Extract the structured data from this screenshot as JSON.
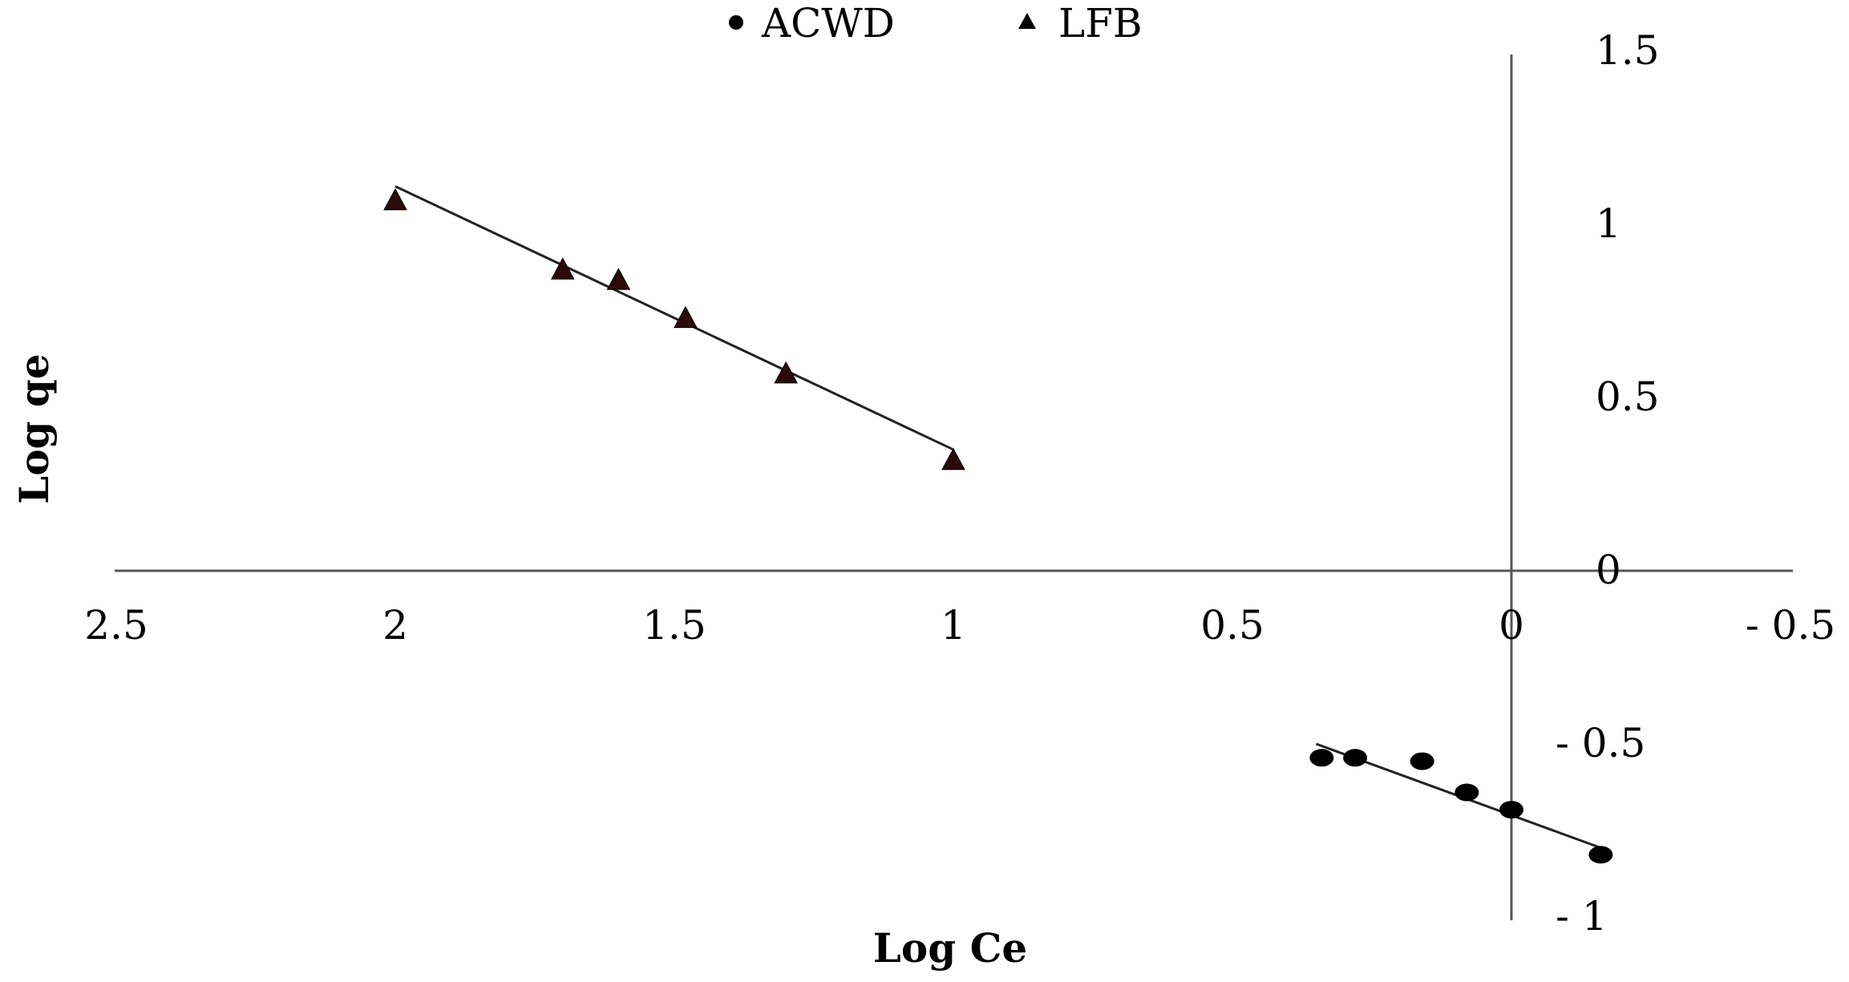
{
  "chart_data": {
    "type": "scatter",
    "xlabel": "Log Ce",
    "ylabel": "Log qe",
    "x_reversed": true,
    "xlim": [
      -0.5,
      2.5
    ],
    "ylim": [
      -1,
      1.5
    ],
    "x_ticks": [
      {
        "value": 2.5,
        "label": "2.5"
      },
      {
        "value": 2,
        "label": "2"
      },
      {
        "value": 1.5,
        "label": "1.5"
      },
      {
        "value": 1,
        "label": "1"
      },
      {
        "value": 0.5,
        "label": "0.5"
      },
      {
        "value": 0,
        "label": "0"
      },
      {
        "value": -0.5,
        "label": "- 0.5"
      }
    ],
    "y_ticks": [
      {
        "value": 1.5,
        "label": "1.5"
      },
      {
        "value": 1,
        "label": "1"
      },
      {
        "value": 0.5,
        "label": "0.5"
      },
      {
        "value": 0,
        "label": "0"
      },
      {
        "value": -0.5,
        "label": "- 0.5"
      },
      {
        "value": -1,
        "label": "- 1"
      }
    ],
    "grid": false,
    "legend_position": "top",
    "series": [
      {
        "name": "ACWD",
        "marker": "circle",
        "color": "#000000",
        "points": [
          {
            "x": 0.34,
            "y": -0.54
          },
          {
            "x": 0.28,
            "y": -0.54
          },
          {
            "x": 0.16,
            "y": -0.55
          },
          {
            "x": 0.08,
            "y": -0.64
          },
          {
            "x": 0.0,
            "y": -0.69
          },
          {
            "x": -0.16,
            "y": -0.82
          }
        ],
        "trendline": {
          "x": [
            0.35,
            -0.16
          ],
          "y": [
            -0.5,
            -0.8
          ]
        }
      },
      {
        "name": "LFB",
        "marker": "triangle",
        "color": "#2b0a0a",
        "points": [
          {
            "x": 2.0,
            "y": 1.07
          },
          {
            "x": 1.7,
            "y": 0.87
          },
          {
            "x": 1.6,
            "y": 0.84
          },
          {
            "x": 1.48,
            "y": 0.73
          },
          {
            "x": 1.3,
            "y": 0.57
          },
          {
            "x": 1.0,
            "y": 0.32
          }
        ],
        "trendline": {
          "x": [
            2.0,
            1.0
          ],
          "y": [
            1.11,
            0.35
          ]
        }
      }
    ]
  }
}
